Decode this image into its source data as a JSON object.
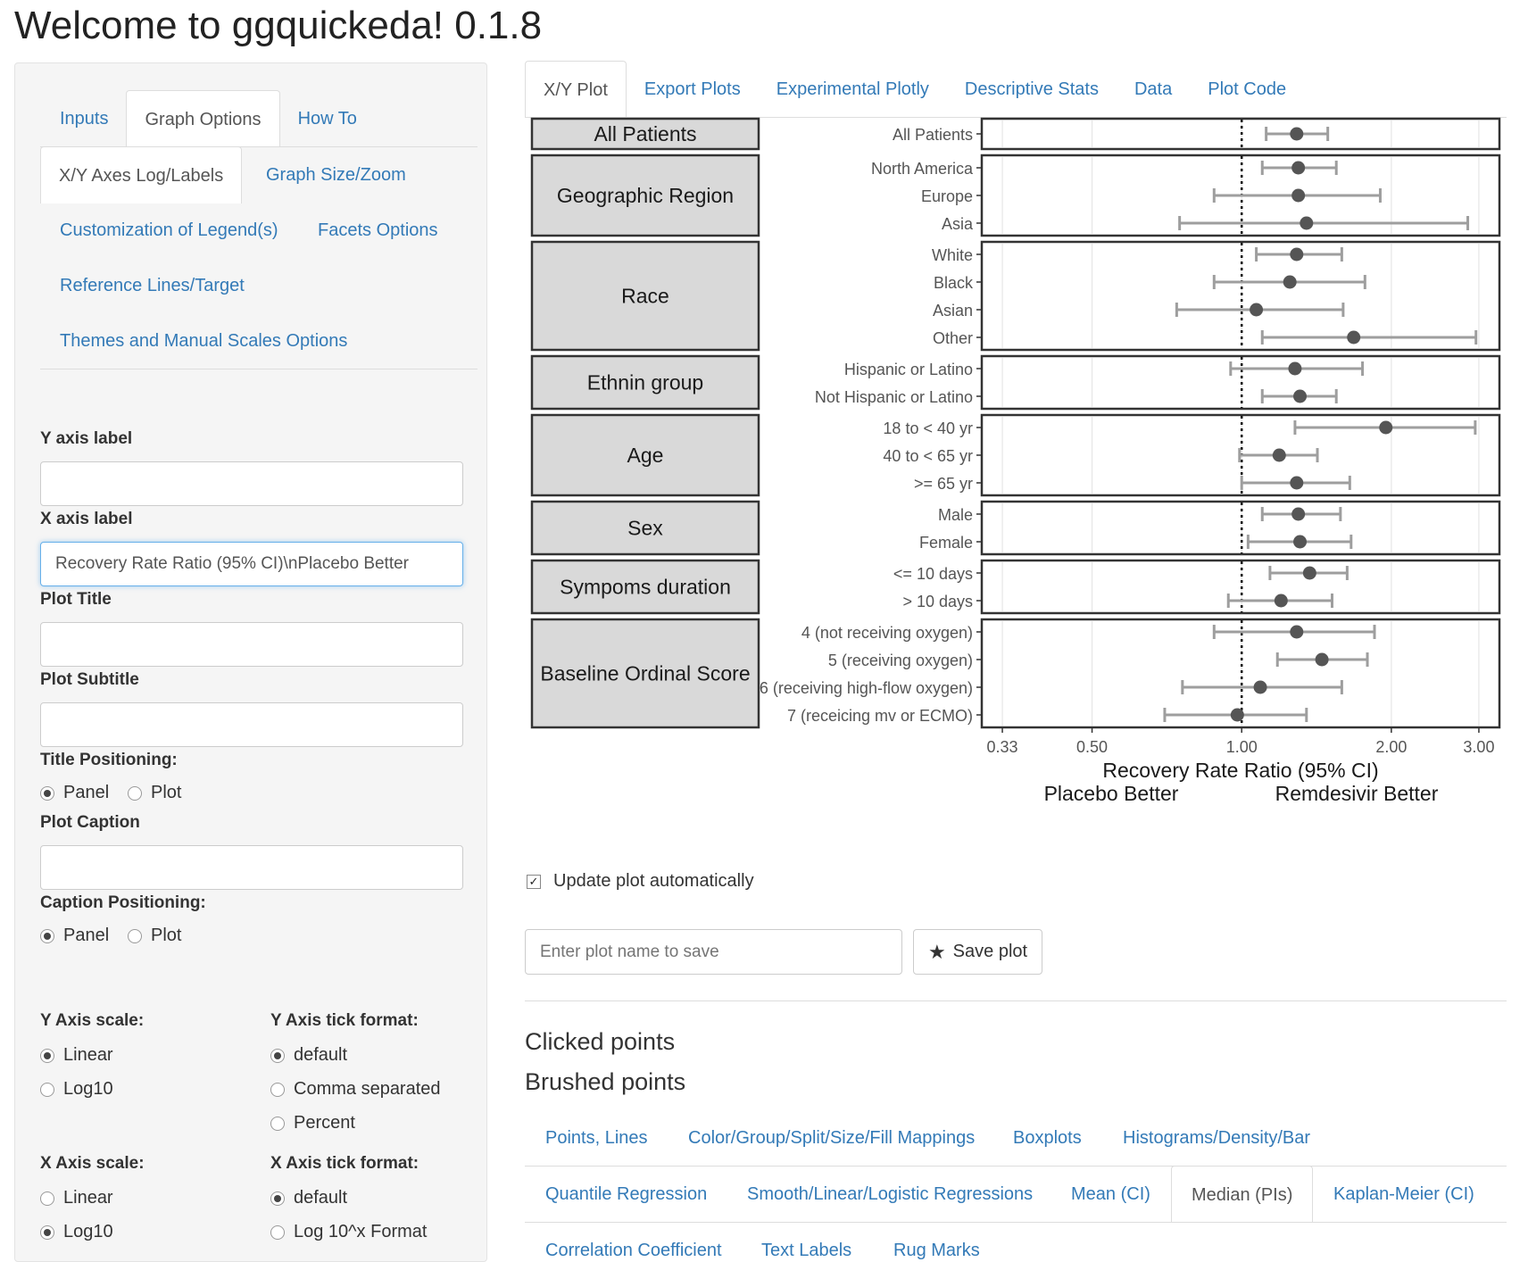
{
  "app": {
    "title": "Welcome to ggquickeda! 0.1.8"
  },
  "sidebar": {
    "tabs": [
      "Inputs",
      "Graph Options",
      "How To"
    ],
    "active_tab": "Graph Options",
    "subtabs": {
      "xy_axes": "X/Y Axes Log/Labels",
      "graph_size": "Graph Size/Zoom",
      "legend": "Customization of Legend(s)",
      "facets": "Facets Options",
      "reference": "Reference Lines/Target",
      "themes": "Themes and Manual Scales Options"
    },
    "y_axis_label": {
      "label": "Y axis label",
      "value": ""
    },
    "x_axis_label": {
      "label": "X axis label",
      "value": "Recovery Rate Ratio (95% CI)\\nPlacebo Better"
    },
    "plot_title": {
      "label": "Plot Title",
      "value": ""
    },
    "plot_subtitle": {
      "label": "Plot Subtitle",
      "value": ""
    },
    "title_positioning": {
      "label": "Title Positioning:",
      "options": [
        "Panel",
        "Plot"
      ],
      "selected": "Panel"
    },
    "plot_caption": {
      "label": "Plot Caption",
      "value": ""
    },
    "caption_positioning": {
      "label": "Caption Positioning:",
      "options": [
        "Panel",
        "Plot"
      ],
      "selected": "Panel"
    },
    "y_axis_scale": {
      "label": "Y Axis scale:",
      "options": [
        "Linear",
        "Log10"
      ],
      "selected": "Linear"
    },
    "y_axis_tick": {
      "label": "Y Axis tick format:",
      "options": [
        "default",
        "Comma separated",
        "Percent"
      ],
      "selected": "default"
    },
    "x_axis_scale": {
      "label": "X Axis scale:",
      "options": [
        "Linear",
        "Log10"
      ],
      "selected": "Log10"
    },
    "x_axis_tick": {
      "label": "X Axis tick format:",
      "options": [
        "default",
        "Log 10^x Format"
      ],
      "selected": "default"
    }
  },
  "main": {
    "tabs": [
      "X/Y Plot",
      "Export Plots",
      "Experimental Plotly",
      "Descriptive Stats",
      "Data",
      "Plot Code"
    ],
    "active_tab": "X/Y Plot",
    "update_auto": {
      "label": "Update plot automatically",
      "checked": true
    },
    "save_name": {
      "placeholder": "Enter plot name to save"
    },
    "save_button": "Save plot",
    "clicked_points": "Clicked points",
    "brushed_points": "Brushed points",
    "bottom_tabs": [
      [
        "Points, Lines",
        "Color/Group/Split/Size/Fill Mappings",
        "Boxplots",
        "Histograms/Density/Bar"
      ],
      [
        "Quantile Regression",
        "Smooth/Linear/Logistic Regressions",
        "Mean (CI)",
        "Median (PIs)",
        "Kaplan-Meier (CI)"
      ],
      [
        "Correlation Coefficient",
        "Text Labels",
        "Rug Marks"
      ]
    ],
    "bottom_active": "Median (PIs)"
  },
  "chart_data": {
    "type": "scatter",
    "xlabel": "Recovery Rate Ratio (95% CI)",
    "x_annotations": {
      "left": "Placebo Better",
      "right": "Remdesivir Better"
    },
    "x_scale": "log10",
    "xlim": [
      0.3,
      3.3
    ],
    "x_ticks": [
      "0.33",
      "0.50",
      "1.00",
      "2.00",
      "3.00"
    ],
    "x_tick_values": [
      0.33,
      0.5,
      1.0,
      2.0,
      3.0
    ],
    "reference_line": 1.0,
    "facets": [
      {
        "label": "All Patients",
        "rows": [
          {
            "label": "All Patients",
            "est": 1.29,
            "lo": 1.12,
            "hi": 1.49
          }
        ]
      },
      {
        "label": "Geographic Region",
        "rows": [
          {
            "label": "North America",
            "est": 1.3,
            "lo": 1.1,
            "hi": 1.55
          },
          {
            "label": "Europe",
            "est": 1.3,
            "lo": 0.88,
            "hi": 1.9
          },
          {
            "label": "Asia",
            "est": 1.35,
            "lo": 0.75,
            "hi": 2.85
          }
        ]
      },
      {
        "label": "Race",
        "rows": [
          {
            "label": "White",
            "est": 1.29,
            "lo": 1.07,
            "hi": 1.59
          },
          {
            "label": "Black",
            "est": 1.25,
            "lo": 0.88,
            "hi": 1.77
          },
          {
            "label": "Asian",
            "est": 1.07,
            "lo": 0.74,
            "hi": 1.6
          },
          {
            "label": "Other",
            "est": 1.68,
            "lo": 1.1,
            "hi": 2.96
          }
        ]
      },
      {
        "label": "Ethnin group",
        "rows": [
          {
            "label": "Hispanic or Latino",
            "est": 1.28,
            "lo": 0.95,
            "hi": 1.75
          },
          {
            "label": "Not Hispanic or Latino",
            "est": 1.31,
            "lo": 1.1,
            "hi": 1.55
          }
        ]
      },
      {
        "label": "Age",
        "rows": [
          {
            "label": "18 to < 40 yr",
            "est": 1.95,
            "lo": 1.28,
            "hi": 2.95
          },
          {
            "label": "40 to < 65 yr",
            "est": 1.19,
            "lo": 0.99,
            "hi": 1.42
          },
          {
            "label": ">= 65 yr",
            "est": 1.29,
            "lo": 1.0,
            "hi": 1.65
          }
        ]
      },
      {
        "label": "Sex",
        "rows": [
          {
            "label": "Male",
            "est": 1.3,
            "lo": 1.1,
            "hi": 1.58
          },
          {
            "label": "Female",
            "est": 1.31,
            "lo": 1.03,
            "hi": 1.66
          }
        ]
      },
      {
        "label": "Sympoms duration",
        "rows": [
          {
            "label": "<= 10 days",
            "est": 1.37,
            "lo": 1.14,
            "hi": 1.63
          },
          {
            "label": "> 10 days",
            "est": 1.2,
            "lo": 0.94,
            "hi": 1.52
          }
        ]
      },
      {
        "label": "Baseline Ordinal Score",
        "rows": [
          {
            "label": "4 (not receiving oxygen)",
            "est": 1.29,
            "lo": 0.88,
            "hi": 1.85
          },
          {
            "label": "5 (receiving oxygen)",
            "est": 1.45,
            "lo": 1.18,
            "hi": 1.79
          },
          {
            "label": "6 (receiving high-flow oxygen)",
            "est": 1.09,
            "lo": 0.76,
            "hi": 1.59
          },
          {
            "label": "7 (receicing mv or ECMO)",
            "est": 0.98,
            "lo": 0.7,
            "hi": 1.35
          }
        ]
      }
    ]
  }
}
